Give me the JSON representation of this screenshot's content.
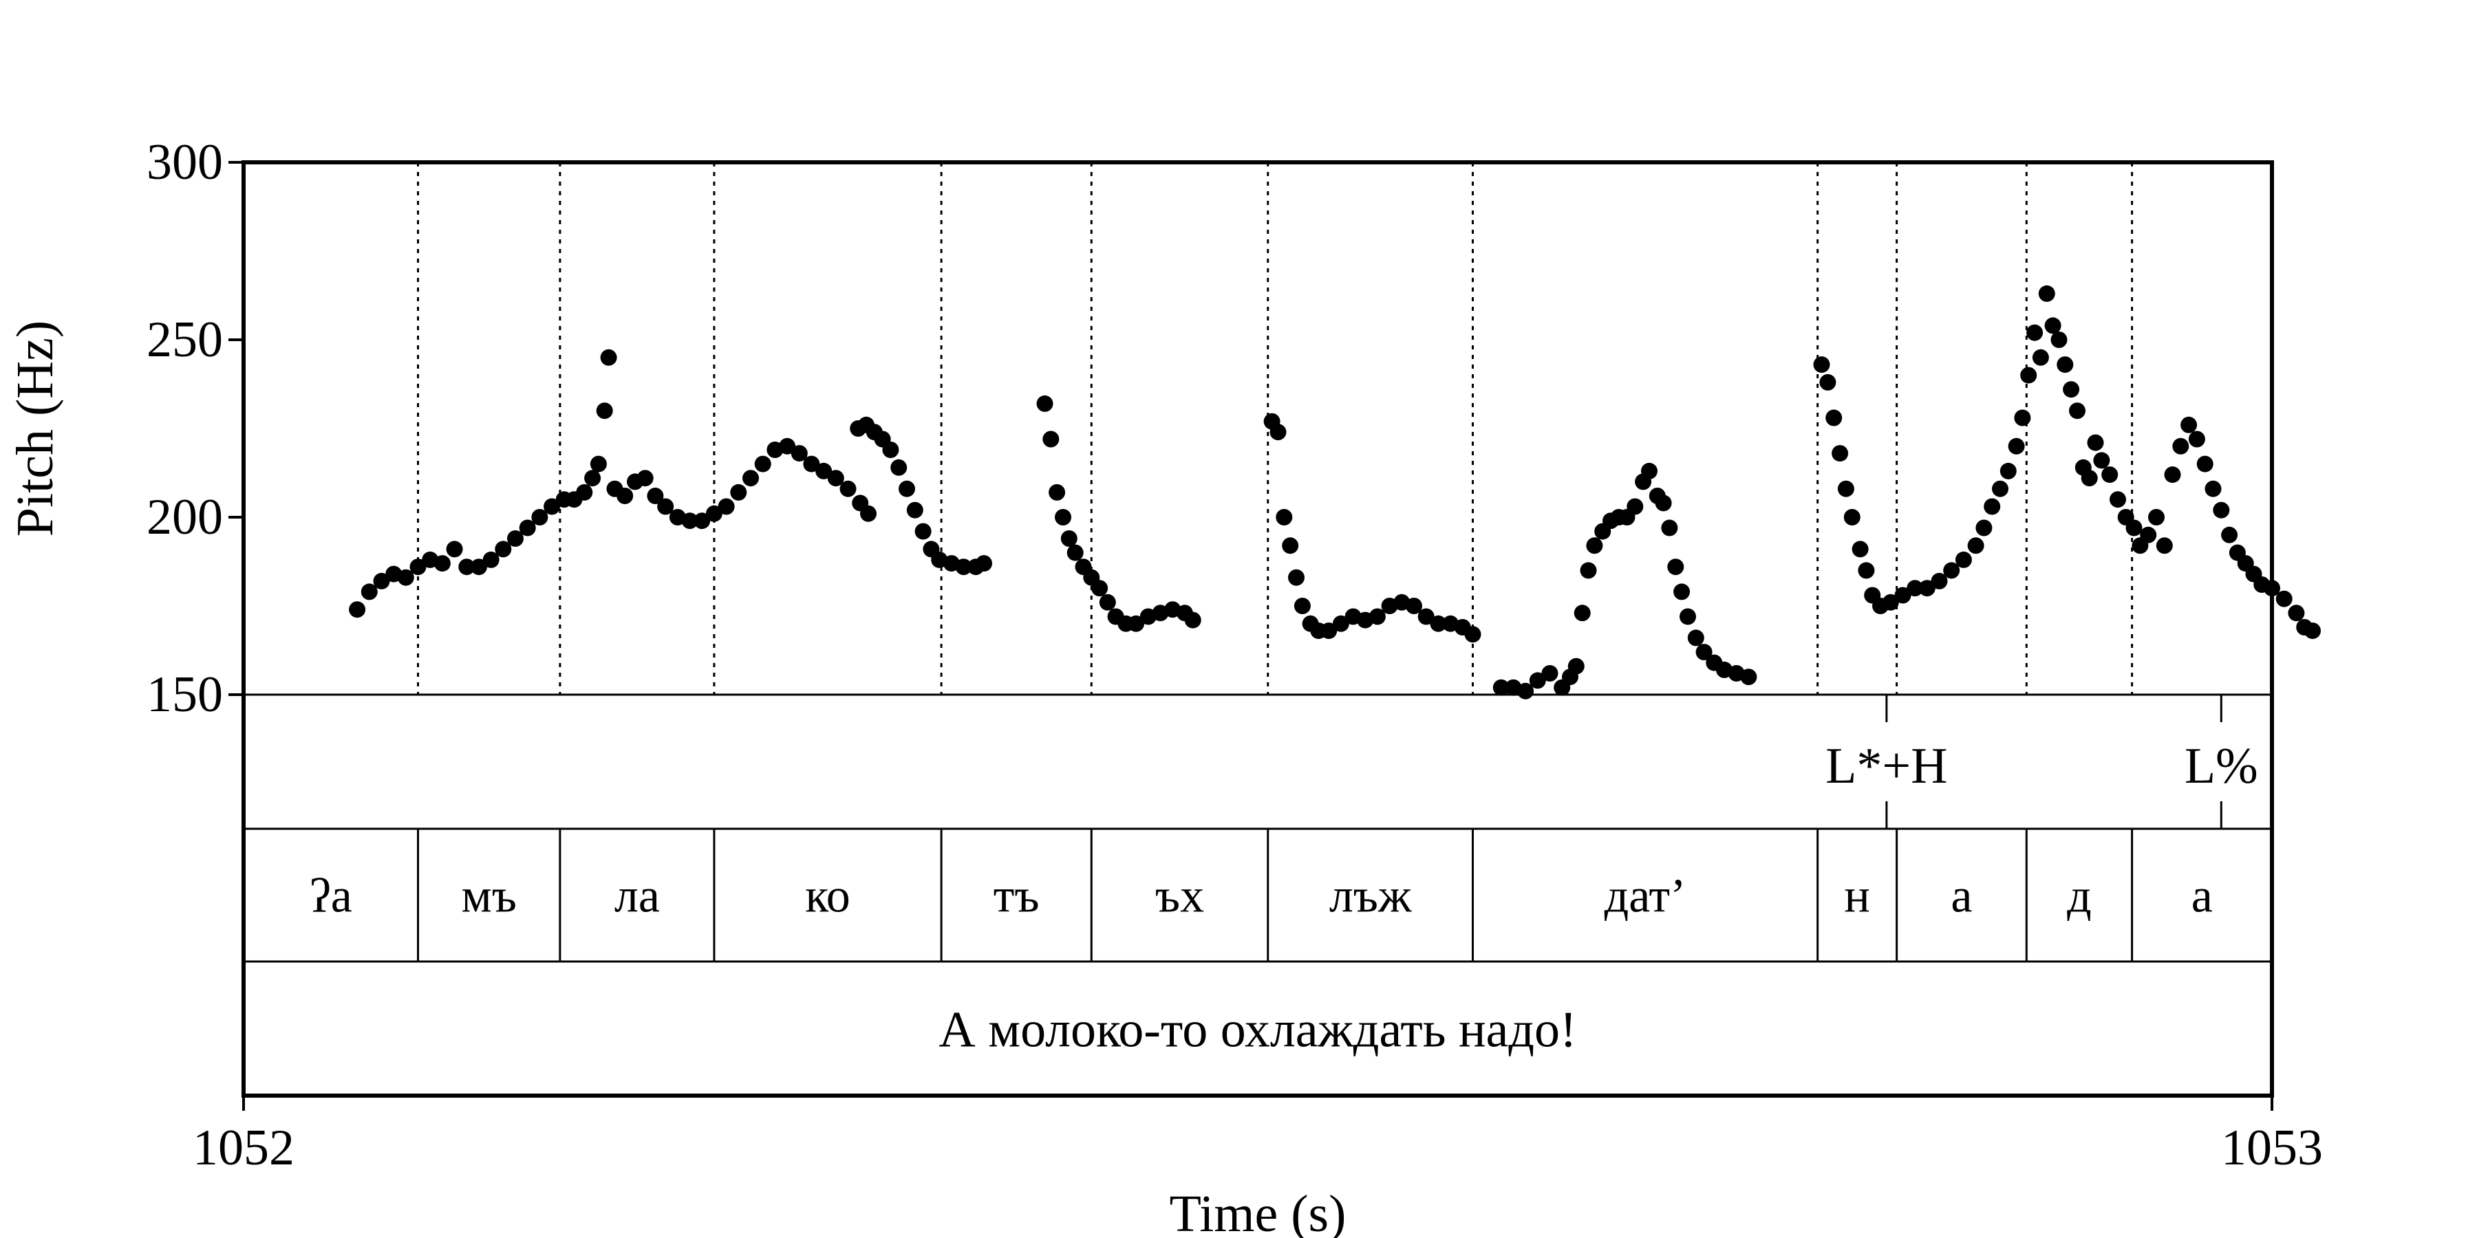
{
  "chart_data": {
    "type": "scatter",
    "xlabel": "Time (s)",
    "ylabel": "Pitch (Hz)",
    "xlim": [
      1052,
      1053
    ],
    "ylim": [
      150,
      300
    ],
    "x_ticks": [
      {
        "value": 1052,
        "label": "1052"
      },
      {
        "value": 1053,
        "label": "1053"
      }
    ],
    "y_ticks": [
      {
        "value": 150,
        "label": "150"
      },
      {
        "value": 200,
        "label": "200"
      },
      {
        "value": 250,
        "label": "250"
      },
      {
        "value": 300,
        "label": "300"
      }
    ],
    "marker_color": "#000000",
    "grid": false,
    "pitch_contours": [
      {
        "points": [
          [
            1052.056,
            174
          ],
          [
            1052.062,
            179
          ],
          [
            1052.068,
            182
          ],
          [
            1052.074,
            184
          ],
          [
            1052.08,
            183
          ],
          [
            1052.086,
            186
          ],
          [
            1052.092,
            188
          ],
          [
            1052.098,
            187
          ],
          [
            1052.104,
            191
          ],
          [
            1052.11,
            186
          ],
          [
            1052.116,
            186
          ],
          [
            1052.122,
            188
          ],
          [
            1052.128,
            191
          ],
          [
            1052.134,
            194
          ],
          [
            1052.14,
            197
          ],
          [
            1052.146,
            200
          ],
          [
            1052.152,
            203
          ],
          [
            1052.158,
            205
          ],
          [
            1052.163,
            205
          ],
          [
            1052.168,
            207
          ],
          [
            1052.172,
            211
          ],
          [
            1052.175,
            215
          ],
          [
            1052.178,
            230
          ],
          [
            1052.18,
            245
          ],
          [
            1052.183,
            208
          ],
          [
            1052.188,
            206
          ],
          [
            1052.193,
            210
          ],
          [
            1052.198,
            211
          ],
          [
            1052.203,
            206
          ],
          [
            1052.208,
            203
          ],
          [
            1052.214,
            200
          ],
          [
            1052.22,
            199
          ],
          [
            1052.226,
            199
          ],
          [
            1052.232,
            201
          ],
          [
            1052.238,
            203
          ],
          [
            1052.244,
            207
          ],
          [
            1052.25,
            211
          ],
          [
            1052.256,
            215
          ],
          [
            1052.262,
            219
          ],
          [
            1052.268,
            220
          ],
          [
            1052.274,
            218
          ],
          [
            1052.28,
            215
          ],
          [
            1052.286,
            213
          ],
          [
            1052.292,
            211
          ],
          [
            1052.298,
            208
          ],
          [
            1052.304,
            204
          ],
          [
            1052.308,
            201
          ]
        ]
      },
      {
        "points": [
          [
            1052.303,
            225
          ],
          [
            1052.307,
            226
          ],
          [
            1052.311,
            224
          ],
          [
            1052.315,
            222
          ],
          [
            1052.319,
            219
          ],
          [
            1052.323,
            214
          ],
          [
            1052.327,
            208
          ],
          [
            1052.331,
            202
          ],
          [
            1052.335,
            196
          ],
          [
            1052.339,
            191
          ],
          [
            1052.343,
            188
          ],
          [
            1052.349,
            187
          ],
          [
            1052.355,
            186
          ],
          [
            1052.361,
            186
          ],
          [
            1052.365,
            187
          ]
        ]
      },
      {
        "points": [
          [
            1052.395,
            232
          ],
          [
            1052.398,
            222
          ],
          [
            1052.401,
            207
          ],
          [
            1052.404,
            200
          ],
          [
            1052.407,
            194
          ],
          [
            1052.41,
            190
          ],
          [
            1052.414,
            186
          ],
          [
            1052.418,
            183
          ],
          [
            1052.422,
            180
          ],
          [
            1052.426,
            176
          ],
          [
            1052.43,
            172
          ],
          [
            1052.435,
            170
          ],
          [
            1052.44,
            170
          ],
          [
            1052.446,
            172
          ],
          [
            1052.452,
            173
          ],
          [
            1052.458,
            174
          ],
          [
            1052.464,
            173
          ],
          [
            1052.468,
            171
          ]
        ]
      },
      {
        "points": [
          [
            1052.507,
            227
          ],
          [
            1052.51,
            224
          ],
          [
            1052.513,
            200
          ],
          [
            1052.516,
            192
          ],
          [
            1052.519,
            183
          ],
          [
            1052.522,
            175
          ],
          [
            1052.526,
            170
          ],
          [
            1052.53,
            168
          ],
          [
            1052.535,
            168
          ],
          [
            1052.541,
            170
          ],
          [
            1052.547,
            172
          ],
          [
            1052.553,
            171
          ],
          [
            1052.559,
            172
          ],
          [
            1052.565,
            175
          ],
          [
            1052.571,
            176
          ],
          [
            1052.577,
            175
          ],
          [
            1052.583,
            172
          ],
          [
            1052.589,
            170
          ],
          [
            1052.595,
            170
          ],
          [
            1052.601,
            169
          ],
          [
            1052.606,
            167
          ]
        ]
      },
      {
        "points": [
          [
            1052.62,
            152
          ],
          [
            1052.626,
            152
          ],
          [
            1052.632,
            151
          ],
          [
            1052.638,
            154
          ],
          [
            1052.644,
            156
          ],
          [
            1052.65,
            152
          ],
          [
            1052.654,
            155
          ],
          [
            1052.657,
            158
          ],
          [
            1052.66,
            173
          ],
          [
            1052.663,
            185
          ],
          [
            1052.666,
            192
          ],
          [
            1052.67,
            196
          ],
          [
            1052.674,
            199
          ],
          [
            1052.678,
            200
          ],
          [
            1052.682,
            200
          ],
          [
            1052.686,
            203
          ],
          [
            1052.69,
            210
          ],
          [
            1052.693,
            213
          ],
          [
            1052.697,
            206
          ],
          [
            1052.7,
            204
          ],
          [
            1052.703,
            197
          ],
          [
            1052.706,
            186
          ],
          [
            1052.709,
            179
          ],
          [
            1052.712,
            172
          ],
          [
            1052.716,
            166
          ],
          [
            1052.72,
            162
          ],
          [
            1052.725,
            159
          ],
          [
            1052.73,
            157
          ],
          [
            1052.736,
            156
          ],
          [
            1052.742,
            155
          ]
        ]
      },
      {
        "points": [
          [
            1052.778,
            243
          ],
          [
            1052.781,
            238
          ],
          [
            1052.784,
            228
          ],
          [
            1052.787,
            218
          ],
          [
            1052.79,
            208
          ],
          [
            1052.793,
            200
          ],
          [
            1052.797,
            191
          ],
          [
            1052.8,
            185
          ],
          [
            1052.803,
            178
          ],
          [
            1052.807,
            175
          ],
          [
            1052.812,
            176
          ],
          [
            1052.818,
            178
          ],
          [
            1052.824,
            180
          ],
          [
            1052.83,
            180
          ],
          [
            1052.836,
            182
          ],
          [
            1052.842,
            185
          ],
          [
            1052.848,
            188
          ],
          [
            1052.854,
            192
          ],
          [
            1052.858,
            197
          ],
          [
            1052.862,
            203
          ],
          [
            1052.866,
            208
          ],
          [
            1052.87,
            213
          ],
          [
            1052.874,
            220
          ],
          [
            1052.877,
            228
          ],
          [
            1052.88,
            240
          ],
          [
            1052.883,
            252
          ],
          [
            1052.886,
            245
          ],
          [
            1052.889,
            263
          ],
          [
            1052.892,
            254
          ],
          [
            1052.895,
            250
          ],
          [
            1052.898,
            243
          ],
          [
            1052.901,
            236
          ],
          [
            1052.904,
            230
          ],
          [
            1052.907,
            214
          ],
          [
            1052.91,
            211
          ],
          [
            1052.913,
            221
          ],
          [
            1052.916,
            216
          ],
          [
            1052.92,
            212
          ],
          [
            1052.924,
            205
          ],
          [
            1052.928,
            200
          ],
          [
            1052.932,
            197
          ],
          [
            1052.935,
            192
          ],
          [
            1052.939,
            195
          ],
          [
            1052.943,
            200
          ],
          [
            1052.947,
            192
          ],
          [
            1052.951,
            212
          ],
          [
            1052.955,
            220
          ],
          [
            1052.959,
            226
          ],
          [
            1052.963,
            222
          ],
          [
            1052.967,
            215
          ],
          [
            1052.971,
            208
          ],
          [
            1052.975,
            202
          ],
          [
            1052.979,
            195
          ],
          [
            1052.983,
            190
          ],
          [
            1052.987,
            187
          ],
          [
            1052.991,
            184
          ],
          [
            1052.995,
            181
          ],
          [
            1053.0,
            180
          ],
          [
            1053.006,
            177
          ],
          [
            1053.012,
            173
          ],
          [
            1053.016,
            169
          ],
          [
            1053.02,
            168
          ]
        ]
      }
    ],
    "tiers": {
      "tones": [
        {
          "time": 1052.81,
          "label": "L*+H"
        },
        {
          "time": 1052.975,
          "label": "L%"
        }
      ],
      "syllable_boundaries": [
        1052.086,
        1052.156,
        1052.232,
        1052.344,
        1052.418,
        1052.505,
        1052.606,
        1052.776,
        1052.815,
        1052.879,
        1052.931
      ],
      "syllables": [
        {
          "start": 1052.0,
          "end": 1052.086,
          "label": "ʔa"
        },
        {
          "start": 1052.086,
          "end": 1052.156,
          "label": "мъ"
        },
        {
          "start": 1052.156,
          "end": 1052.232,
          "label": "ла"
        },
        {
          "start": 1052.232,
          "end": 1052.344,
          "label": "ко"
        },
        {
          "start": 1052.344,
          "end": 1052.418,
          "label": "тъ"
        },
        {
          "start": 1052.418,
          "end": 1052.505,
          "label": "ъх"
        },
        {
          "start": 1052.505,
          "end": 1052.606,
          "label": "лъж"
        },
        {
          "start": 1052.606,
          "end": 1052.776,
          "label": "дат’"
        },
        {
          "start": 1052.776,
          "end": 1052.815,
          "label": "н"
        },
        {
          "start": 1052.815,
          "end": 1052.879,
          "label": "а"
        },
        {
          "start": 1052.879,
          "end": 1052.931,
          "label": "д"
        },
        {
          "start": 1052.931,
          "end": 1053.0,
          "label": "а"
        }
      ],
      "sentence": "А молоко-то охлаждать надо!"
    }
  }
}
